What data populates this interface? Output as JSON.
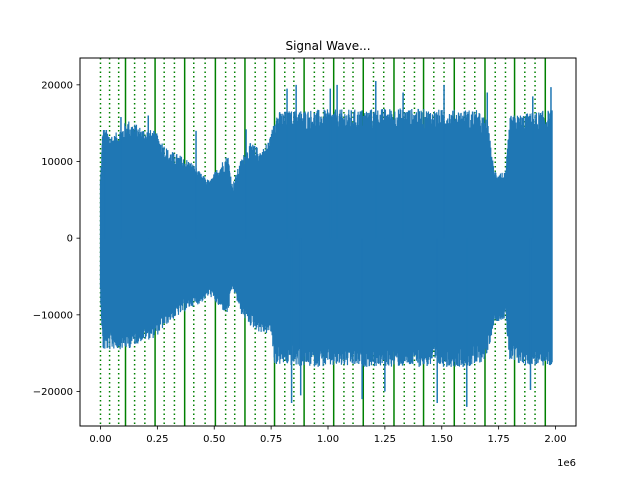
{
  "chart_data": {
    "type": "line",
    "title": "Signal Wave...",
    "xlabel": "",
    "ylabel": "",
    "x_offset_label": "1e6",
    "xlim": [
      -90000,
      2090000
    ],
    "ylim": [
      -24500,
      23500
    ],
    "x_ticks": [
      {
        "value": 0,
        "label": "0.00"
      },
      {
        "value": 250000,
        "label": "0.25"
      },
      {
        "value": 500000,
        "label": "0.50"
      },
      {
        "value": 750000,
        "label": "0.75"
      },
      {
        "value": 1000000,
        "label": "1.00"
      },
      {
        "value": 1250000,
        "label": "1.25"
      },
      {
        "value": 1500000,
        "label": "1.50"
      },
      {
        "value": 1750000,
        "label": "1.75"
      },
      {
        "value": 2000000,
        "label": "2.00"
      }
    ],
    "y_ticks": [
      {
        "value": -20000,
        "label": "−20000"
      },
      {
        "value": -10000,
        "label": "−10000"
      },
      {
        "value": 0,
        "label": "0"
      },
      {
        "value": 10000,
        "label": "10000"
      },
      {
        "value": 20000,
        "label": "20000"
      }
    ],
    "grid": false,
    "series": [
      {
        "color": "#1f77b4",
        "x_range": [
          0,
          1985000
        ],
        "envelope": [
          {
            "x": 0,
            "top": 8000,
            "bottom": -7500
          },
          {
            "x": 10000,
            "top": 14500,
            "bottom": -14800
          },
          {
            "x": 60000,
            "top": 13500,
            "bottom": -14500
          },
          {
            "x": 120000,
            "top": 15500,
            "bottom": -14500
          },
          {
            "x": 180000,
            "top": 14500,
            "bottom": -13500
          },
          {
            "x": 240000,
            "top": 14000,
            "bottom": -13000
          },
          {
            "x": 300000,
            "top": 11500,
            "bottom": -11000
          },
          {
            "x": 340000,
            "top": 11000,
            "bottom": -10200
          },
          {
            "x": 400000,
            "top": 10000,
            "bottom": -9000
          },
          {
            "x": 440000,
            "top": 8500,
            "bottom": -8500
          },
          {
            "x": 480000,
            "top": 7500,
            "bottom": -7500
          },
          {
            "x": 520000,
            "top": 9500,
            "bottom": -9000
          },
          {
            "x": 560000,
            "top": 11000,
            "bottom": -10000
          },
          {
            "x": 580000,
            "top": 7000,
            "bottom": -6500
          },
          {
            "x": 620000,
            "top": 10500,
            "bottom": -10000
          },
          {
            "x": 660000,
            "top": 12500,
            "bottom": -11500
          },
          {
            "x": 710000,
            "top": 11500,
            "bottom": -12500
          },
          {
            "x": 750000,
            "top": 13500,
            "bottom": -12500
          },
          {
            "x": 765000,
            "top": 16500,
            "bottom": -16500
          },
          {
            "x": 900000,
            "top": 16800,
            "bottom": -16800
          },
          {
            "x": 1100000,
            "top": 16800,
            "bottom": -16800
          },
          {
            "x": 1300000,
            "top": 17000,
            "bottom": -16800
          },
          {
            "x": 1500000,
            "top": 16800,
            "bottom": -16800
          },
          {
            "x": 1650000,
            "top": 16800,
            "bottom": -16800
          },
          {
            "x": 1700000,
            "top": 15500,
            "bottom": -15500
          },
          {
            "x": 1730000,
            "top": 9000,
            "bottom": -11000
          },
          {
            "x": 1780000,
            "top": 8500,
            "bottom": -10500
          },
          {
            "x": 1800000,
            "top": 16000,
            "bottom": -16500
          },
          {
            "x": 1985000,
            "top": 16800,
            "bottom": -16800
          }
        ],
        "spikes": [
          {
            "x": 20000,
            "value": 12000
          },
          {
            "x": 90000,
            "value": 15800
          },
          {
            "x": 210000,
            "value": 16000
          },
          {
            "x": 420000,
            "value": 14000
          },
          {
            "x": 640000,
            "value": 14200
          },
          {
            "x": 820000,
            "value": 19500
          },
          {
            "x": 840000,
            "value": -21500
          },
          {
            "x": 860000,
            "value": 20000
          },
          {
            "x": 880000,
            "value": -20500
          },
          {
            "x": 1010000,
            "value": 19500
          },
          {
            "x": 1040000,
            "value": 20000
          },
          {
            "x": 1150000,
            "value": -21000
          },
          {
            "x": 1210000,
            "value": 20500
          },
          {
            "x": 1250000,
            "value": -20000
          },
          {
            "x": 1330000,
            "value": 19000
          },
          {
            "x": 1480000,
            "value": -21500
          },
          {
            "x": 1510000,
            "value": 20000
          },
          {
            "x": 1610000,
            "value": -22000
          },
          {
            "x": 1700000,
            "value": 19000
          },
          {
            "x": 1890000,
            "value": -19800
          },
          {
            "x": 1900000,
            "value": 18500
          },
          {
            "x": 1980000,
            "value": 19700
          }
        ]
      }
    ],
    "markers": {
      "color": "#008000",
      "solid_x": [
        110000,
        240000,
        370000,
        505000,
        635000,
        765000,
        895000,
        1025000,
        1155000,
        1290000,
        1420000,
        1555000,
        1690000,
        1820000,
        1955000
      ],
      "dotted_x": [
        0,
        40000,
        80000,
        150000,
        195000,
        280000,
        325000,
        410000,
        460000,
        550000,
        590000,
        680000,
        725000,
        810000,
        850000,
        940000,
        980000,
        1070000,
        1110000,
        1200000,
        1245000,
        1335000,
        1380000,
        1465000,
        1510000,
        1600000,
        1645000,
        1735000,
        1780000,
        1865000,
        1910000
      ]
    }
  }
}
